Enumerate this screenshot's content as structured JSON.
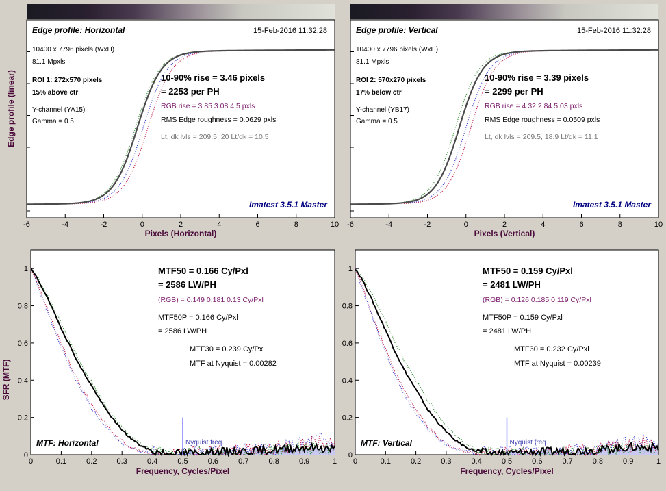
{
  "figure_background": "#d4d0c8",
  "colors": {
    "main": "#202020",
    "edge_main": "#4a4a4a",
    "red": "#c0144a",
    "green": "#2a8a2a",
    "blue": "#3a3ad0",
    "purple": "#7a1a6a",
    "grey": "#777777",
    "navy": "#000080",
    "axis_label": "#4a0a3a",
    "nyquist": "#8080ff",
    "fill": "#c8c8f0"
  },
  "chart_data": [
    {
      "id": "edge-h",
      "type": "line",
      "title": "Edge profile: Horizontal",
      "timestamp": "15-Feb-2016 11:32:28",
      "xlabel": "Pixels (Horizontal)",
      "ylabel": "Edge profile (linear)",
      "xlim": [
        -6,
        10
      ],
      "xticks": [
        -6,
        -4,
        -2,
        0,
        2,
        4,
        6,
        8,
        10
      ],
      "ytick_count": 6,
      "edge": {
        "center": -0.25,
        "width": 1.15,
        "red_shift": 0.55,
        "green_shift": -0.1,
        "blue_shift": 0.3
      },
      "info_lines": [
        {
          "text": "10400 x 7796 pixels (WxH)",
          "style": "normal"
        },
        {
          "text": "81.1 Mpxls",
          "style": "normal"
        },
        {
          "text": "ROI 1:  272x570 pixels",
          "style": "bold"
        },
        {
          "text": "15% above ctr",
          "style": "bold"
        },
        {
          "text": "Y-channel  (YA15)",
          "style": "normal"
        },
        {
          "text": "Gamma = 0.5",
          "style": "normal"
        }
      ],
      "rise_lines": [
        "10-90% rise = 3.46 pixels",
        "= 2253 per PH"
      ],
      "rgb_rise": "RGB rise = 3.85  3.08  4.5 pxls",
      "roughness": "RMS Edge roughness = 0.0629 pxls",
      "levels": "Lt, dk lvls = 209.5, 20   Lt/dk = 10.5",
      "brand": "Imatest 3.5.1 Master"
    },
    {
      "id": "edge-v",
      "type": "line",
      "title": "Edge profile: Vertical",
      "timestamp": "15-Feb-2016 11:32:28",
      "xlabel": "Pixels (Vertical)",
      "ylabel": "",
      "xlim": [
        -6,
        10
      ],
      "xticks": [
        -6,
        -4,
        -2,
        0,
        2,
        4,
        6,
        8,
        10
      ],
      "ytick_count": 6,
      "edge": {
        "center": -0.35,
        "width": 1.12,
        "red_shift": 0.6,
        "green_shift": -0.2,
        "blue_shift": 0.35
      },
      "info_lines": [
        {
          "text": "10400 x 7796 pixels (WxH)",
          "style": "normal"
        },
        {
          "text": "81.1 Mpxls",
          "style": "normal"
        },
        {
          "text": "ROI 2:  570x270 pixels",
          "style": "bold"
        },
        {
          "text": "17% below ctr",
          "style": "bold"
        },
        {
          "text": "Y-channel  (YB17)",
          "style": "normal"
        },
        {
          "text": "Gamma = 0.5",
          "style": "normal"
        }
      ],
      "rise_lines": [
        "10-90% rise = 3.39 pixels",
        "= 2299 per PH"
      ],
      "rgb_rise": "RGB rise = 4.32  2.84  5.03 pxls",
      "roughness": "RMS Edge roughness = 0.0509 pxls",
      "levels": "Lt, dk lvls = 209.5, 18.9   Lt/dk = 11.1",
      "brand": "Imatest 3.5.1 Master"
    },
    {
      "id": "mtf-h",
      "type": "line",
      "title": "MTF: Horizontal",
      "xlabel": "Frequency, Cycles/Pixel",
      "ylabel": "SFR (MTF)",
      "xlim": [
        0,
        1
      ],
      "ylim": [
        0,
        1.1
      ],
      "xticks": [
        "0",
        "0.1",
        "0.2",
        "0.3",
        "0.4",
        "0.5",
        "0.6",
        "0.7",
        "0.8",
        "0.9",
        "1"
      ],
      "yticks": [
        "0",
        "0.2",
        "0.4",
        "0.6",
        "0.8",
        "1"
      ],
      "mtf_main": {
        "x": [
          0,
          0.02,
          0.05,
          0.08,
          0.1,
          0.13,
          0.16,
          0.2,
          0.24,
          0.28,
          0.32,
          0.36,
          0.4,
          0.45,
          0.5,
          0.55,
          0.6,
          0.7,
          0.8,
          0.9,
          1
        ],
        "y": [
          1,
          0.95,
          0.86,
          0.75,
          0.68,
          0.58,
          0.48,
          0.37,
          0.26,
          0.17,
          0.1,
          0.05,
          0.02,
          0.005,
          0.008,
          0.01,
          0.015,
          0.02,
          0.025,
          0.04,
          0.03
        ]
      },
      "mtf_red": {
        "x": [
          0,
          0.02,
          0.05,
          0.08,
          0.1,
          0.13,
          0.16,
          0.2,
          0.24,
          0.28,
          0.32,
          0.36,
          0.4,
          0.45,
          0.5,
          0.6,
          0.7,
          0.8,
          0.9,
          0.95,
          1
        ],
        "y": [
          1,
          0.93,
          0.8,
          0.67,
          0.6,
          0.48,
          0.38,
          0.27,
          0.18,
          0.1,
          0.05,
          0.02,
          0.01,
          0.005,
          0.01,
          0.015,
          0.02,
          0.03,
          0.05,
          0.07,
          0.04
        ]
      },
      "mtf_green": {
        "x": [
          0,
          0.02,
          0.05,
          0.08,
          0.1,
          0.13,
          0.16,
          0.2,
          0.24,
          0.28,
          0.32,
          0.36,
          0.4,
          0.45,
          0.5,
          0.6,
          0.7,
          0.8,
          0.9,
          1
        ],
        "y": [
          1,
          0.96,
          0.87,
          0.77,
          0.71,
          0.6,
          0.5,
          0.39,
          0.28,
          0.19,
          0.11,
          0.06,
          0.025,
          0.008,
          0.01,
          0.015,
          0.02,
          0.02,
          0.035,
          0.03
        ]
      },
      "mtf_blue": {
        "x": [
          0,
          0.02,
          0.05,
          0.08,
          0.1,
          0.13,
          0.16,
          0.2,
          0.24,
          0.28,
          0.32,
          0.36,
          0.4,
          0.45,
          0.5,
          0.6,
          0.7,
          0.8,
          0.9,
          0.95,
          1
        ],
        "y": [
          1,
          0.92,
          0.79,
          0.66,
          0.58,
          0.46,
          0.36,
          0.25,
          0.16,
          0.09,
          0.04,
          0.02,
          0.01,
          0.005,
          0.01,
          0.02,
          0.025,
          0.03,
          0.06,
          0.09,
          0.05
        ]
      },
      "nyquist_label": "Nyquist freq.",
      "nyquist_x": 0.5,
      "nyquist_height": 0.2,
      "mtf50_lines": [
        "MTF50 = 0.166 Cy/Pxl",
        "= 2586 LW/PH"
      ],
      "rgb_line": "(RGB) = 0.149  0.181  0.13 Cy/Pxl",
      "mtf50p_lines": [
        "MTF50P = 0.166 Cy/Pxl",
        "= 2586 LW/PH"
      ],
      "mtf30_lines": [
        "MTF30 = 0.239 Cy/Pxl",
        "MTF at Nyquist = 0.00282"
      ]
    },
    {
      "id": "mtf-v",
      "type": "line",
      "title": "MTF: Vertical",
      "xlabel": "Frequency, Cycles/Pixel",
      "ylabel": "",
      "xlim": [
        0,
        1
      ],
      "ylim": [
        0,
        1.1
      ],
      "xticks": [
        "0",
        "0.1",
        "0.2",
        "0.3",
        "0.4",
        "0.5",
        "0.6",
        "0.7",
        "0.8",
        "0.9",
        "1"
      ],
      "yticks": [
        "0",
        "0.2",
        "0.4",
        "0.6",
        "0.8",
        "1"
      ],
      "mtf_main": {
        "x": [
          0,
          0.02,
          0.05,
          0.08,
          0.1,
          0.13,
          0.16,
          0.2,
          0.24,
          0.28,
          0.32,
          0.36,
          0.4,
          0.45,
          0.5,
          0.55,
          0.6,
          0.7,
          0.8,
          0.9,
          1
        ],
        "y": [
          1,
          0.95,
          0.85,
          0.74,
          0.67,
          0.56,
          0.46,
          0.35,
          0.24,
          0.16,
          0.09,
          0.045,
          0.018,
          0.005,
          0.008,
          0.01,
          0.015,
          0.02,
          0.025,
          0.04,
          0.04
        ]
      },
      "mtf_red": {
        "x": [
          0,
          0.02,
          0.05,
          0.08,
          0.1,
          0.13,
          0.16,
          0.2,
          0.24,
          0.28,
          0.32,
          0.36,
          0.4,
          0.45,
          0.5,
          0.6,
          0.7,
          0.8,
          0.9,
          0.95,
          1
        ],
        "y": [
          1,
          0.92,
          0.78,
          0.65,
          0.57,
          0.45,
          0.35,
          0.24,
          0.15,
          0.08,
          0.04,
          0.02,
          0.01,
          0.005,
          0.01,
          0.015,
          0.02,
          0.03,
          0.05,
          0.06,
          0.04
        ]
      },
      "mtf_green": {
        "x": [
          0,
          0.02,
          0.05,
          0.08,
          0.1,
          0.13,
          0.16,
          0.2,
          0.24,
          0.28,
          0.32,
          0.36,
          0.4,
          0.45,
          0.5,
          0.6,
          0.7,
          0.8,
          0.9,
          1
        ],
        "y": [
          1,
          0.96,
          0.88,
          0.78,
          0.72,
          0.61,
          0.51,
          0.4,
          0.29,
          0.2,
          0.12,
          0.06,
          0.025,
          0.008,
          0.01,
          0.015,
          0.02,
          0.02,
          0.035,
          0.03
        ]
      },
      "mtf_blue": {
        "x": [
          0,
          0.02,
          0.05,
          0.08,
          0.1,
          0.13,
          0.16,
          0.2,
          0.24,
          0.28,
          0.32,
          0.36,
          0.4,
          0.45,
          0.5,
          0.6,
          0.7,
          0.8,
          0.9,
          0.95,
          1
        ],
        "y": [
          1,
          0.91,
          0.77,
          0.63,
          0.55,
          0.43,
          0.33,
          0.22,
          0.14,
          0.08,
          0.04,
          0.02,
          0.01,
          0.005,
          0.01,
          0.02,
          0.025,
          0.03,
          0.06,
          0.08,
          0.05
        ]
      },
      "nyquist_label": "Nyquist freq.",
      "nyquist_x": 0.5,
      "nyquist_height": 0.2,
      "mtf50_lines": [
        "MTF50 = 0.159 Cy/Pxl",
        "= 2481 LW/PH"
      ],
      "rgb_line": "(RGB) = 0.126  0.185  0.119 Cy/Pxl",
      "mtf50p_lines": [
        "MTF50P = 0.159 Cy/Pxl",
        "= 2481 LW/PH"
      ],
      "mtf30_lines": [
        "MTF30 = 0.232 Cy/Pxl",
        "MTF at Nyquist = 0.00239"
      ]
    }
  ]
}
